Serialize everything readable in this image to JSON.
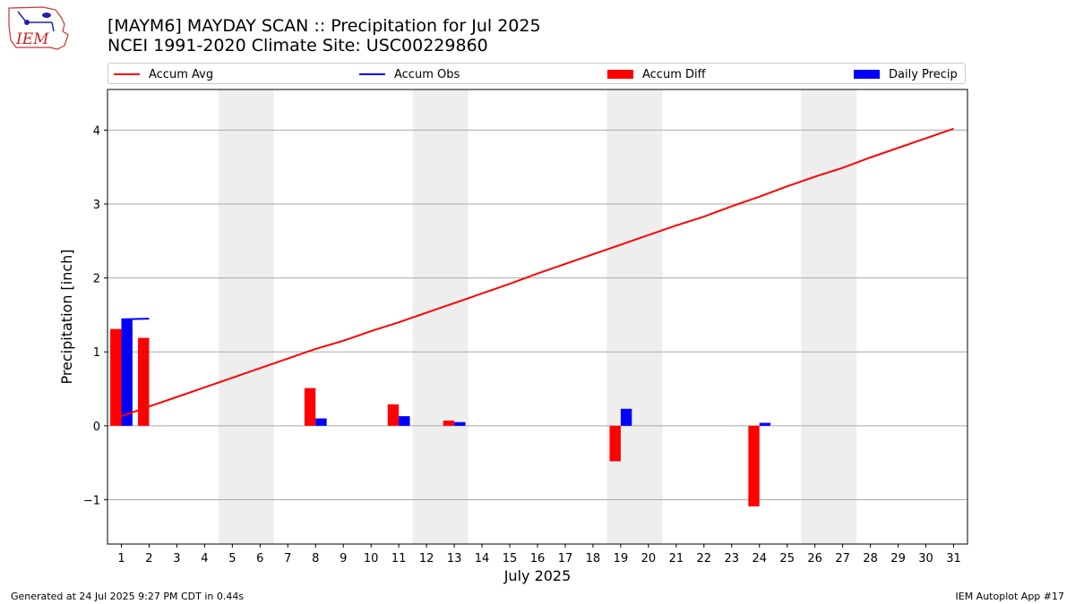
{
  "title": {
    "line1": "[MAYM6] MAYDAY SCAN :: Precipitation for Jul 2025",
    "line2": "NCEI 1991-2020 Climate Site: USC00229860"
  },
  "logo": {
    "text": "IEM"
  },
  "legend": {
    "accum_avg": "Accum Avg",
    "accum_obs": "Accum Obs",
    "accum_diff": "Accum Diff",
    "daily_precip": "Daily Precip"
  },
  "footer": {
    "left": "Generated at 24 Jul 2025 9:27 PM CDT in 0.44s",
    "right": "IEM Autoplot App #17"
  },
  "colors": {
    "avg": "#ff0000",
    "obs": "#0000ff",
    "diff": "#ff0000",
    "daily": "#0000ff",
    "weekend_shade": "#eeeeee",
    "grid": "#aaaaaa"
  },
  "chart_data": {
    "type": "bar",
    "xlabel": "July 2025",
    "ylabel": "Precipitation [inch]",
    "xlim": [
      0.5,
      31.5
    ],
    "ylim": [
      -1.6,
      4.55
    ],
    "yticks": [
      -1,
      0,
      1,
      2,
      3,
      4
    ],
    "ytick_labels": [
      "−1",
      "0",
      "1",
      "2",
      "3",
      "4"
    ],
    "days": [
      1,
      2,
      3,
      4,
      5,
      6,
      7,
      8,
      9,
      10,
      11,
      12,
      13,
      14,
      15,
      16,
      17,
      18,
      19,
      20,
      21,
      22,
      23,
      24,
      25,
      26,
      27,
      28,
      29,
      30,
      31
    ],
    "shaded_weekends": [
      [
        4.5,
        6.5
      ],
      [
        11.5,
        13.5
      ],
      [
        18.5,
        20.5
      ],
      [
        25.5,
        27.5
      ]
    ],
    "grid": "horizontal",
    "series": [
      {
        "name": "Accum Avg",
        "type": "line",
        "x": [
          1,
          2,
          3,
          4,
          5,
          6,
          7,
          8,
          9,
          10,
          11,
          12,
          13,
          14,
          15,
          16,
          17,
          18,
          19,
          20,
          21,
          22,
          23,
          24,
          25,
          26,
          27,
          28,
          29,
          30,
          31
        ],
        "values": [
          0.13,
          0.26,
          0.39,
          0.52,
          0.65,
          0.78,
          0.91,
          1.04,
          1.15,
          1.28,
          1.4,
          1.53,
          1.66,
          1.79,
          1.92,
          2.06,
          2.19,
          2.32,
          2.45,
          2.58,
          2.71,
          2.83,
          2.97,
          3.1,
          3.24,
          3.37,
          3.49,
          3.63,
          3.76,
          3.89,
          4.02
        ]
      },
      {
        "name": "Accum Obs",
        "type": "line",
        "x": [
          1,
          2
        ],
        "values": [
          1.44,
          1.45
        ]
      },
      {
        "name": "Accum Diff",
        "type": "bar",
        "x": [
          1,
          2,
          8,
          11,
          13,
          19,
          24
        ],
        "values": [
          1.31,
          1.19,
          0.51,
          0.29,
          0.07,
          -0.48,
          -1.09
        ]
      },
      {
        "name": "Daily Precip",
        "type": "bar",
        "x": [
          1,
          8,
          11,
          13,
          19,
          24
        ],
        "values": [
          1.44,
          0.1,
          0.13,
          0.05,
          0.23,
          0.04
        ]
      }
    ]
  }
}
